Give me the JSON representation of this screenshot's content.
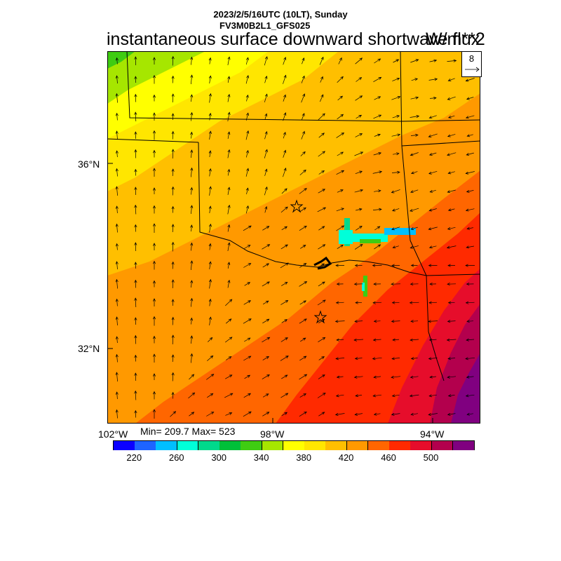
{
  "header": {
    "datetime": "2023/2/5/16UTC (10LT), Sunday",
    "run_id": "FV3M0B2L1_GFS025",
    "title": "instantaneous surface downward shortwave flux",
    "units": "W/m**2"
  },
  "map": {
    "lat_labels": [
      "36°N",
      "32°N"
    ],
    "lon_labels": [
      "102°W",
      "98°W",
      "94°W"
    ],
    "stats": "Min= 209.7 Max= 523",
    "vector_reference": {
      "label": "8",
      "arrow_icon": "right-arrow-icon"
    },
    "markers": [
      "star-icon",
      "star-icon"
    ]
  },
  "colorbar": {
    "colors": [
      "#0b00ff",
      "#1e64ff",
      "#00bfff",
      "#00ffd9",
      "#00d98c",
      "#00bf39",
      "#3fcc12",
      "#a6e600",
      "#ffff00",
      "#ffe600",
      "#ffbf00",
      "#ff9900",
      "#ff6600",
      "#ff2a00",
      "#e60d2b",
      "#b3004d",
      "#800080"
    ],
    "tick_labels": [
      "220",
      "260",
      "300",
      "340",
      "380",
      "420",
      "460",
      "500"
    ]
  },
  "chart_data": {
    "type": "heatmap",
    "variable": "instantaneous surface downward shortwave flux",
    "units": "W/m**2",
    "min": 209.7,
    "max": 523,
    "colorbar_ticks": [
      220,
      260,
      300,
      340,
      380,
      420,
      460,
      500
    ],
    "latitude_ticks": [
      "36°N",
      "32°N"
    ],
    "longitude_ticks": [
      "102°W",
      "98°W",
      "94°W"
    ]
  }
}
